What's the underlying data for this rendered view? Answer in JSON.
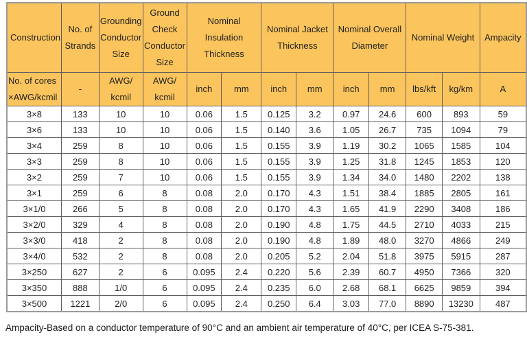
{
  "table": {
    "headers": [
      "Construction",
      "No. of\nStrands",
      "Grounding\nConductor\nSize",
      "Ground\nCheck\nConductor\nSize",
      "Nominal Insulation\nThickness",
      "Nominal Jacket\nThickness",
      "Nominal Overall\nDiameter",
      "Nominal Weight",
      "Ampacity"
    ],
    "units": [
      "No. of cores\n×AWG/kcmil",
      "-",
      "AWG/\nkcmil",
      "AWG/\nkcmil",
      "inch",
      "mm",
      "inch",
      "mm",
      "inch",
      "mm",
      "lbs/kft",
      "kg/km",
      "A"
    ],
    "rows": [
      [
        "3×8",
        "133",
        "10",
        "10",
        "0.06",
        "1.5",
        "0.125",
        "3.2",
        "0.97",
        "24.6",
        "600",
        "893",
        "59"
      ],
      [
        "3×6",
        "133",
        "10",
        "10",
        "0.06",
        "1.5",
        "0.140",
        "3.6",
        "1.05",
        "26.7",
        "735",
        "1094",
        "79"
      ],
      [
        "3×4",
        "259",
        "8",
        "10",
        "0.06",
        "1.5",
        "0.155",
        "3.9",
        "1.19",
        "30.2",
        "1065",
        "1585",
        "104"
      ],
      [
        "3×3",
        "259",
        "8",
        "10",
        "0.06",
        "1.5",
        "0.155",
        "3.9",
        "1.25",
        "31.8",
        "1245",
        "1853",
        "120"
      ],
      [
        "3×2",
        "259",
        "7",
        "10",
        "0.06",
        "1.5",
        "0.155",
        "3.9",
        "1.34",
        "34.0",
        "1480",
        "2202",
        "138"
      ],
      [
        "3×1",
        "259",
        "6",
        "8",
        "0.08",
        "2.0",
        "0.170",
        "4.3",
        "1.51",
        "38.4",
        "1885",
        "2805",
        "161"
      ],
      [
        "3×1/0",
        "266",
        "5",
        "8",
        "0.08",
        "2.0",
        "0.170",
        "4.3",
        "1.65",
        "41.9",
        "2290",
        "3408",
        "186"
      ],
      [
        "3×2/0",
        "329",
        "4",
        "8",
        "0.08",
        "2.0",
        "0.190",
        "4.8",
        "1.75",
        "44.5",
        "2710",
        "4033",
        "215"
      ],
      [
        "3×3/0",
        "418",
        "2",
        "8",
        "0.08",
        "2.0",
        "0.190",
        "4.8",
        "1.89",
        "48.0",
        "3270",
        "4866",
        "249"
      ],
      [
        "3×4/0",
        "532",
        "2",
        "8",
        "0.08",
        "2.0",
        "0.205",
        "5.2",
        "2.04",
        "51.8",
        "3975",
        "5915",
        "287"
      ],
      [
        "3×250",
        "627",
        "2",
        "6",
        "0.095",
        "2.4",
        "0.220",
        "5.6",
        "2.39",
        "60.7",
        "4950",
        "7366",
        "320"
      ],
      [
        "3×350",
        "888",
        "1/0",
        "6",
        "0.095",
        "2.4",
        "0.235",
        "6.0",
        "2.68",
        "68.1",
        "6625",
        "9859",
        "394"
      ],
      [
        "3×500",
        "1221",
        "2/0",
        "6",
        "0.095",
        "2.4",
        "0.250",
        "6.4",
        "3.03",
        "77.0",
        "8890",
        "13230",
        "487"
      ]
    ]
  },
  "footnote": "Ampacity-Based on a conductor temperature of 90°C and an ambient air temperature of 40°C, per ICEA S-75-381.",
  "colors": {
    "header_bg": "#fbc45c",
    "border": "#5f5f5f",
    "outer_border": "#9b9b9b",
    "text": "#222222"
  }
}
